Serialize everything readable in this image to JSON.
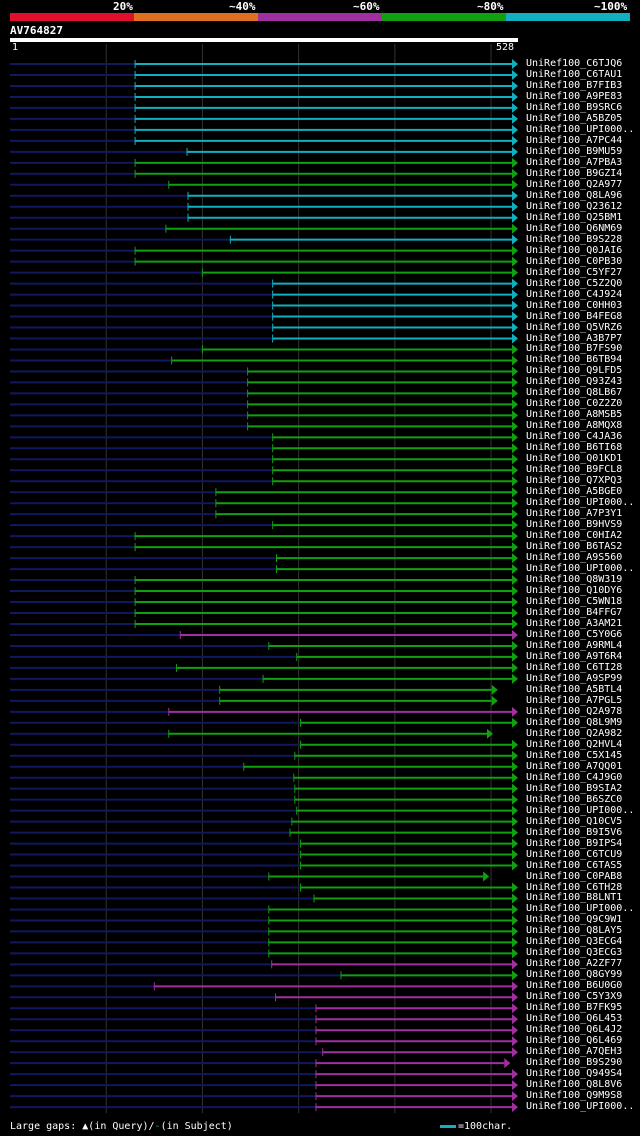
{
  "colors": {
    "c20": "#e0102a",
    "c40": "#e07020",
    "c60": "#a030a0",
    "c80": "#10a010",
    "c100": "#10b0c0",
    "query_line": "#101860",
    "background": "#000000"
  },
  "legend": [
    "20%",
    "~40%",
    "~60%",
    "~80%",
    "~100%"
  ],
  "query": {
    "id": "AV764827",
    "start": "1",
    "end": "528"
  },
  "footer": {
    "gaps_prefix": "Large gaps:",
    "query_gap_text": "(in Query)/",
    "subject_gap_dash": "-",
    "subject_gap_text": "(in Subject)",
    "scale_text": "=100char."
  },
  "chart_data": {
    "type": "alignment",
    "query_length": 528,
    "gridlines": [
      100,
      200,
      300,
      400,
      500
    ],
    "hits": [
      {
        "name": "UniRef100_C6TJQ6",
        "start": 130,
        "end": 528,
        "identity": "~100%",
        "arrow": true
      },
      {
        "name": "UniRef100_C6TAU1",
        "start": 130,
        "end": 528,
        "identity": "~100%",
        "arrow": true
      },
      {
        "name": "UniRef100_B7FIB3",
        "start": 130,
        "end": 528,
        "identity": "~100%",
        "arrow": true
      },
      {
        "name": "UniRef100_A9PE83",
        "start": 130,
        "end": 528,
        "identity": "~100%",
        "arrow": true
      },
      {
        "name": "UniRef100_B9SRC6",
        "start": 130,
        "end": 528,
        "identity": "~100%",
        "arrow": true
      },
      {
        "name": "UniRef100_A5BZ05",
        "start": 130,
        "end": 528,
        "identity": "~100%",
        "arrow": true
      },
      {
        "name": "UniRef100_UPI000..",
        "start": 130,
        "end": 528,
        "identity": "~100%",
        "arrow": true
      },
      {
        "name": "UniRef100_A7PC44",
        "start": 130,
        "end": 528,
        "identity": "~100%",
        "arrow": true
      },
      {
        "name": "UniRef100_B9MU59",
        "start": 184,
        "end": 528,
        "identity": "~100%",
        "arrow": true
      },
      {
        "name": "UniRef100_A7PBA3",
        "start": 130,
        "end": 528,
        "identity": "~80%",
        "arrow": true
      },
      {
        "name": "UniRef100_B9GZI4",
        "start": 130,
        "end": 528,
        "identity": "~80%",
        "arrow": true
      },
      {
        "name": "UniRef100_Q2A977",
        "start": 165,
        "end": 528,
        "identity": "~80%",
        "arrow": true
      },
      {
        "name": "UniRef100_Q8LA96",
        "start": 185,
        "end": 528,
        "identity": "~100%",
        "arrow": true
      },
      {
        "name": "UniRef100_Q23612",
        "start": 185,
        "end": 528,
        "identity": "~100%",
        "arrow": true
      },
      {
        "name": "UniRef100_Q25BM1",
        "start": 185,
        "end": 528,
        "identity": "~100%",
        "arrow": true
      },
      {
        "name": "UniRef100_Q6NM69",
        "start": 162,
        "end": 528,
        "identity": "~80%",
        "arrow": true
      },
      {
        "name": "UniRef100_B9S228",
        "start": 229,
        "end": 528,
        "identity": "~100%",
        "arrow": true
      },
      {
        "name": "UniRef100_Q0JAI6",
        "start": 130,
        "end": 528,
        "identity": "~80%",
        "arrow": true
      },
      {
        "name": "UniRef100_C0PB30",
        "start": 130,
        "end": 528,
        "identity": "~80%",
        "arrow": true
      },
      {
        "name": "UniRef100_C5YF27",
        "start": 200,
        "end": 528,
        "identity": "~80%",
        "arrow": true
      },
      {
        "name": "UniRef100_C5Z2Q0",
        "start": 273,
        "end": 528,
        "identity": "~100%",
        "arrow": true
      },
      {
        "name": "UniRef100_C4J924",
        "start": 273,
        "end": 528,
        "identity": "~100%",
        "arrow": true
      },
      {
        "name": "UniRef100_C0HH03",
        "start": 273,
        "end": 528,
        "identity": "~100%",
        "arrow": true
      },
      {
        "name": "UniRef100_B4FEG8",
        "start": 273,
        "end": 528,
        "identity": "~100%",
        "arrow": true
      },
      {
        "name": "UniRef100_Q5VRZ6",
        "start": 273,
        "end": 528,
        "identity": "~100%",
        "arrow": true
      },
      {
        "name": "UniRef100_A3B7P7",
        "start": 273,
        "end": 528,
        "identity": "~100%",
        "arrow": true
      },
      {
        "name": "UniRef100_B7FS90",
        "start": 200,
        "end": 528,
        "identity": "~80%",
        "arrow": true
      },
      {
        "name": "UniRef100_B6TB94",
        "start": 168,
        "end": 528,
        "identity": "~80%",
        "arrow": true
      },
      {
        "name": "UniRef100_Q9LFD5",
        "start": 247,
        "end": 528,
        "identity": "~80%",
        "arrow": true
      },
      {
        "name": "UniRef100_Q93Z43",
        "start": 247,
        "end": 528,
        "identity": "~80%",
        "arrow": true
      },
      {
        "name": "UniRef100_Q8LB67",
        "start": 247,
        "end": 528,
        "identity": "~80%",
        "arrow": true
      },
      {
        "name": "UniRef100_C0Z2Z0",
        "start": 247,
        "end": 528,
        "identity": "~80%",
        "arrow": true
      },
      {
        "name": "UniRef100_A8MSB5",
        "start": 247,
        "end": 528,
        "identity": "~80%",
        "arrow": true
      },
      {
        "name": "UniRef100_A8MQX8",
        "start": 247,
        "end": 528,
        "identity": "~80%",
        "arrow": true
      },
      {
        "name": "UniRef100_C4JA36",
        "start": 273,
        "end": 528,
        "identity": "~80%",
        "arrow": true
      },
      {
        "name": "UniRef100_B6TI68",
        "start": 273,
        "end": 528,
        "identity": "~80%",
        "arrow": true
      },
      {
        "name": "UniRef100_Q01KD1",
        "start": 273,
        "end": 528,
        "identity": "~80%",
        "arrow": true
      },
      {
        "name": "UniRef100_B9FCL8",
        "start": 273,
        "end": 528,
        "identity": "~80%",
        "arrow": true
      },
      {
        "name": "UniRef100_Q7XPQ3",
        "start": 273,
        "end": 528,
        "identity": "~80%",
        "arrow": true
      },
      {
        "name": "UniRef100_A5BGE0",
        "start": 214,
        "end": 528,
        "identity": "~80%",
        "arrow": true
      },
      {
        "name": "UniRef100_UPI000..",
        "start": 214,
        "end": 528,
        "identity": "~80%",
        "arrow": true
      },
      {
        "name": "UniRef100_A7P3Y1",
        "start": 214,
        "end": 528,
        "identity": "~80%",
        "arrow": true
      },
      {
        "name": "UniRef100_B9HVS9",
        "start": 273,
        "end": 528,
        "identity": "~80%",
        "arrow": true
      },
      {
        "name": "UniRef100_C0HIA2",
        "start": 130,
        "end": 528,
        "identity": "~80%",
        "arrow": true
      },
      {
        "name": "UniRef100_B6TAS2",
        "start": 130,
        "end": 528,
        "identity": "~80%",
        "arrow": true
      },
      {
        "name": "UniRef100_A9S560",
        "start": 277,
        "end": 528,
        "identity": "~80%",
        "arrow": true
      },
      {
        "name": "UniRef100_UPI000..",
        "start": 277,
        "end": 528,
        "identity": "~80%",
        "arrow": true
      },
      {
        "name": "UniRef100_Q8W319",
        "start": 130,
        "end": 528,
        "identity": "~80%",
        "arrow": true
      },
      {
        "name": "UniRef100_Q10DY6",
        "start": 130,
        "end": 528,
        "identity": "~80%",
        "arrow": true
      },
      {
        "name": "UniRef100_C5WN18",
        "start": 130,
        "end": 528,
        "identity": "~80%",
        "arrow": true
      },
      {
        "name": "UniRef100_B4FFG7",
        "start": 130,
        "end": 528,
        "identity": "~80%",
        "arrow": true
      },
      {
        "name": "UniRef100_A3AM21",
        "start": 130,
        "end": 528,
        "identity": "~80%",
        "arrow": true
      },
      {
        "name": "UniRef100_C5Y0G6",
        "start": 177,
        "end": 528,
        "identity": "~60%",
        "arrow": true
      },
      {
        "name": "UniRef100_A9RML4",
        "start": 269,
        "end": 528,
        "identity": "~80%",
        "arrow": true
      },
      {
        "name": "UniRef100_A9T6R4",
        "start": 298,
        "end": 528,
        "identity": "~80%",
        "arrow": true
      },
      {
        "name": "UniRef100_C6TI28",
        "start": 173,
        "end": 528,
        "identity": "~80%",
        "arrow": true
      },
      {
        "name": "UniRef100_A9SP99",
        "start": 263,
        "end": 528,
        "identity": "~80%",
        "arrow": true
      },
      {
        "name": "UniRef100_A5BTL4",
        "start": 218,
        "end": 507,
        "identity": "~80%",
        "arrow": true
      },
      {
        "name": "UniRef100_A7PGL5",
        "start": 218,
        "end": 507,
        "identity": "~80%",
        "arrow": true
      },
      {
        "name": "UniRef100_Q2A978",
        "start": 165,
        "end": 528,
        "identity": "~60%",
        "arrow": true
      },
      {
        "name": "UniRef100_Q8L9M9",
        "start": 302,
        "end": 528,
        "identity": "~80%",
        "arrow": true
      },
      {
        "name": "UniRef100_Q2A982",
        "start": 165,
        "end": 502,
        "identity": "~80%",
        "arrow": true
      },
      {
        "name": "UniRef100_Q2HVL4",
        "start": 302,
        "end": 528,
        "identity": "~80%",
        "arrow": true
      },
      {
        "name": "UniRef100_C5X145",
        "start": 296,
        "end": 528,
        "identity": "~80%",
        "arrow": true
      },
      {
        "name": "UniRef100_A7QQ01",
        "start": 243,
        "end": 528,
        "identity": "~80%",
        "arrow": true
      },
      {
        "name": "UniRef100_C4J9G0",
        "start": 295,
        "end": 528,
        "identity": "~80%",
        "arrow": true
      },
      {
        "name": "UniRef100_B9SIA2",
        "start": 296,
        "end": 528,
        "identity": "~80%",
        "arrow": true
      },
      {
        "name": "UniRef100_B6SZC0",
        "start": 296,
        "end": 528,
        "identity": "~80%",
        "arrow": true
      },
      {
        "name": "UniRef100_UPI000..",
        "start": 298,
        "end": 528,
        "identity": "~80%",
        "arrow": true
      },
      {
        "name": "UniRef100_Q10CV5",
        "start": 293,
        "end": 528,
        "identity": "~80%",
        "arrow": true
      },
      {
        "name": "UniRef100_B9I5V6",
        "start": 291,
        "end": 528,
        "identity": "~80%",
        "arrow": true
      },
      {
        "name": "UniRef100_B9IPS4",
        "start": 302,
        "end": 528,
        "identity": "~80%",
        "arrow": true
      },
      {
        "name": "UniRef100_C6TCU9",
        "start": 302,
        "end": 528,
        "identity": "~80%",
        "arrow": true
      },
      {
        "name": "UniRef100_C6TAS5",
        "start": 302,
        "end": 528,
        "identity": "~80%",
        "arrow": true
      },
      {
        "name": "UniRef100_C0PAB8",
        "start": 269,
        "end": 498,
        "identity": "~80%",
        "arrow": true
      },
      {
        "name": "UniRef100_C6TH28",
        "start": 302,
        "end": 528,
        "identity": "~80%",
        "arrow": true
      },
      {
        "name": "UniRef100_B8LNT1",
        "start": 316,
        "end": 528,
        "identity": "~80%",
        "arrow": true
      },
      {
        "name": "UniRef100_UPI000..",
        "start": 269,
        "end": 528,
        "identity": "~80%",
        "arrow": true
      },
      {
        "name": "UniRef100_Q9C9W1",
        "start": 269,
        "end": 528,
        "identity": "~80%",
        "arrow": true
      },
      {
        "name": "UniRef100_Q8LAY5",
        "start": 269,
        "end": 528,
        "identity": "~80%",
        "arrow": true
      },
      {
        "name": "UniRef100_Q3ECG4",
        "start": 269,
        "end": 528,
        "identity": "~80%",
        "arrow": true
      },
      {
        "name": "UniRef100_Q3ECG3",
        "start": 269,
        "end": 528,
        "identity": "~80%",
        "arrow": true
      },
      {
        "name": "UniRef100_A2ZF77",
        "start": 272,
        "end": 528,
        "identity": "~60%",
        "arrow": true
      },
      {
        "name": "UniRef100_Q8GY99",
        "start": 344,
        "end": 528,
        "identity": "~80%",
        "arrow": true
      },
      {
        "name": "UniRef100_B6U0G0",
        "start": 150,
        "end": 528,
        "identity": "~60%",
        "arrow": true
      },
      {
        "name": "UniRef100_C5Y3X9",
        "start": 276,
        "end": 528,
        "identity": "~60%",
        "arrow": true
      },
      {
        "name": "UniRef100_B7FK95",
        "start": 318,
        "end": 528,
        "identity": "~60%",
        "arrow": true
      },
      {
        "name": "UniRef100_Q6L453",
        "start": 318,
        "end": 528,
        "identity": "~60%",
        "arrow": true
      },
      {
        "name": "UniRef100_Q6L4J2",
        "start": 318,
        "end": 528,
        "identity": "~60%",
        "arrow": true
      },
      {
        "name": "UniRef100_Q6L469",
        "start": 318,
        "end": 528,
        "identity": "~60%",
        "arrow": true
      },
      {
        "name": "UniRef100_A7QEH3",
        "start": 325,
        "end": 528,
        "identity": "~60%",
        "arrow": true
      },
      {
        "name": "UniRef100_B9S290",
        "start": 318,
        "end": 520,
        "identity": "~60%",
        "arrow": true
      },
      {
        "name": "UniRef100_Q949S4",
        "start": 318,
        "end": 528,
        "identity": "~60%",
        "arrow": true
      },
      {
        "name": "UniRef100_Q8L8V6",
        "start": 318,
        "end": 528,
        "identity": "~60%",
        "arrow": true
      },
      {
        "name": "UniRef100_Q9M9S8",
        "start": 318,
        "end": 528,
        "identity": "~60%",
        "arrow": true
      },
      {
        "name": "UniRef100_UPI000..",
        "start": 318,
        "end": 528,
        "identity": "~60%",
        "arrow": true
      }
    ]
  }
}
